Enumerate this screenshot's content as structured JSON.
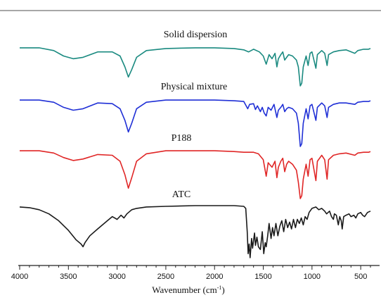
{
  "chart_data": {
    "type": "line",
    "xlabel": "Wavenumber (cm",
    "xlabel_sup": "-1",
    "xlabel_end": ")",
    "x_reversed": true,
    "xlim": [
      4000,
      400
    ],
    "x_ticks": [
      4000,
      3500,
      3000,
      2500,
      2000,
      1500,
      1000,
      500
    ],
    "x_tick_labels": [
      "4000",
      "3500",
      "3000",
      "2500",
      "2000",
      "1500",
      "1000",
      "500"
    ],
    "y_axis_shown": false,
    "grid": false,
    "legend": "none",
    "series": [
      {
        "name": "Solid dispersion",
        "color": "#1a8a80",
        "baseline": 100,
        "points": [
          [
            4000,
            98
          ],
          [
            3800,
            98
          ],
          [
            3650,
            94
          ],
          [
            3550,
            86
          ],
          [
            3450,
            82
          ],
          [
            3350,
            84
          ],
          [
            3200,
            92
          ],
          [
            3050,
            92
          ],
          [
            2970,
            86
          ],
          [
            2920,
            70
          ],
          [
            2885,
            55
          ],
          [
            2850,
            66
          ],
          [
            2800,
            84
          ],
          [
            2700,
            94
          ],
          [
            2500,
            97
          ],
          [
            2200,
            98
          ],
          [
            2000,
            98
          ],
          [
            1800,
            97
          ],
          [
            1700,
            95
          ],
          [
            1650,
            92
          ],
          [
            1600,
            96
          ],
          [
            1540,
            92
          ],
          [
            1500,
            86
          ],
          [
            1470,
            74
          ],
          [
            1440,
            88
          ],
          [
            1410,
            82
          ],
          [
            1380,
            90
          ],
          [
            1360,
            70
          ],
          [
            1345,
            82
          ],
          [
            1320,
            88
          ],
          [
            1300,
            92
          ],
          [
            1280,
            80
          ],
          [
            1260,
            84
          ],
          [
            1240,
            88
          ],
          [
            1200,
            86
          ],
          [
            1160,
            80
          ],
          [
            1140,
            70
          ],
          [
            1120,
            42
          ],
          [
            1105,
            46
          ],
          [
            1090,
            70
          ],
          [
            1060,
            86
          ],
          [
            1040,
            72
          ],
          [
            1020,
            90
          ],
          [
            1000,
            92
          ],
          [
            960,
            68
          ],
          [
            945,
            88
          ],
          [
            900,
            94
          ],
          [
            870,
            90
          ],
          [
            845,
            72
          ],
          [
            830,
            88
          ],
          [
            780,
            92
          ],
          [
            720,
            94
          ],
          [
            650,
            95
          ],
          [
            560,
            90
          ],
          [
            530,
            94
          ],
          [
            470,
            96
          ],
          [
            420,
            96
          ],
          [
            400,
            97
          ]
        ]
      },
      {
        "name": "Physical mixture",
        "color": "#1f2fd6",
        "baseline": 100,
        "points": [
          [
            4000,
            98
          ],
          [
            3800,
            98
          ],
          [
            3650,
            95
          ],
          [
            3550,
            88
          ],
          [
            3450,
            84
          ],
          [
            3350,
            86
          ],
          [
            3200,
            94
          ],
          [
            3050,
            93
          ],
          [
            2970,
            86
          ],
          [
            2920,
            70
          ],
          [
            2885,
            54
          ],
          [
            2850,
            66
          ],
          [
            2800,
            86
          ],
          [
            2700,
            95
          ],
          [
            2500,
            98
          ],
          [
            2200,
            98
          ],
          [
            2000,
            98
          ],
          [
            1800,
            97
          ],
          [
            1700,
            96
          ],
          [
            1660,
            86
          ],
          [
            1640,
            92
          ],
          [
            1600,
            93
          ],
          [
            1580,
            85
          ],
          [
            1560,
            90
          ],
          [
            1530,
            82
          ],
          [
            1510,
            88
          ],
          [
            1490,
            80
          ],
          [
            1470,
            76
          ],
          [
            1450,
            88
          ],
          [
            1420,
            84
          ],
          [
            1390,
            92
          ],
          [
            1360,
            74
          ],
          [
            1345,
            84
          ],
          [
            1320,
            88
          ],
          [
            1300,
            92
          ],
          [
            1280,
            82
          ],
          [
            1260,
            86
          ],
          [
            1240,
            88
          ],
          [
            1200,
            86
          ],
          [
            1160,
            80
          ],
          [
            1140,
            66
          ],
          [
            1120,
            34
          ],
          [
            1105,
            38
          ],
          [
            1090,
            66
          ],
          [
            1060,
            86
          ],
          [
            1040,
            72
          ],
          [
            1020,
            90
          ],
          [
            1000,
            92
          ],
          [
            960,
            70
          ],
          [
            945,
            88
          ],
          [
            900,
            94
          ],
          [
            870,
            90
          ],
          [
            845,
            74
          ],
          [
            830,
            88
          ],
          [
            780,
            92
          ],
          [
            720,
            94
          ],
          [
            650,
            94
          ],
          [
            560,
            92
          ],
          [
            530,
            95
          ],
          [
            470,
            96
          ],
          [
            420,
            96
          ],
          [
            400,
            97
          ]
        ]
      },
      {
        "name": "P188",
        "color": "#e02626",
        "baseline": 100,
        "points": [
          [
            4000,
            98
          ],
          [
            3800,
            98
          ],
          [
            3650,
            95
          ],
          [
            3550,
            89
          ],
          [
            3450,
            85
          ],
          [
            3350,
            87
          ],
          [
            3200,
            93
          ],
          [
            3050,
            92
          ],
          [
            2970,
            84
          ],
          [
            2920,
            66
          ],
          [
            2885,
            48
          ],
          [
            2850,
            62
          ],
          [
            2800,
            84
          ],
          [
            2700,
            94
          ],
          [
            2500,
            98
          ],
          [
            2200,
            98
          ],
          [
            2000,
            98
          ],
          [
            1800,
            97
          ],
          [
            1700,
            96
          ],
          [
            1600,
            96
          ],
          [
            1550,
            94
          ],
          [
            1500,
            86
          ],
          [
            1470,
            64
          ],
          [
            1450,
            82
          ],
          [
            1410,
            76
          ],
          [
            1380,
            84
          ],
          [
            1360,
            62
          ],
          [
            1345,
            76
          ],
          [
            1320,
            84
          ],
          [
            1300,
            88
          ],
          [
            1280,
            70
          ],
          [
            1260,
            80
          ],
          [
            1240,
            84
          ],
          [
            1200,
            80
          ],
          [
            1160,
            72
          ],
          [
            1140,
            56
          ],
          [
            1120,
            34
          ],
          [
            1105,
            38
          ],
          [
            1090,
            60
          ],
          [
            1060,
            80
          ],
          [
            1040,
            64
          ],
          [
            1020,
            86
          ],
          [
            1000,
            88
          ],
          [
            960,
            58
          ],
          [
            945,
            84
          ],
          [
            900,
            92
          ],
          [
            870,
            86
          ],
          [
            845,
            60
          ],
          [
            830,
            86
          ],
          [
            780,
            92
          ],
          [
            720,
            94
          ],
          [
            650,
            95
          ],
          [
            560,
            92
          ],
          [
            530,
            95
          ],
          [
            470,
            96
          ],
          [
            420,
            96
          ],
          [
            400,
            97
          ]
        ]
      },
      {
        "name": "ATC",
        "color": "#1a1a1a",
        "baseline": 100,
        "points": [
          [
            4000,
            98
          ],
          [
            3900,
            97
          ],
          [
            3800,
            94
          ],
          [
            3700,
            88
          ],
          [
            3600,
            78
          ],
          [
            3500,
            64
          ],
          [
            3420,
            50
          ],
          [
            3370,
            44
          ],
          [
            3350,
            40
          ],
          [
            3330,
            46
          ],
          [
            3280,
            56
          ],
          [
            3200,
            66
          ],
          [
            3100,
            78
          ],
          [
            3050,
            84
          ],
          [
            3000,
            80
          ],
          [
            2960,
            86
          ],
          [
            2930,
            82
          ],
          [
            2900,
            88
          ],
          [
            2850,
            94
          ],
          [
            2800,
            96
          ],
          [
            2700,
            98
          ],
          [
            2500,
            99
          ],
          [
            2200,
            100
          ],
          [
            2000,
            100
          ],
          [
            1800,
            100
          ],
          [
            1700,
            99
          ],
          [
            1680,
            96
          ],
          [
            1665,
            62
          ],
          [
            1655,
            30
          ],
          [
            1645,
            44
          ],
          [
            1635,
            24
          ],
          [
            1620,
            52
          ],
          [
            1610,
            38
          ],
          [
            1590,
            60
          ],
          [
            1580,
            42
          ],
          [
            1565,
            54
          ],
          [
            1550,
            40
          ],
          [
            1530,
            36
          ],
          [
            1510,
            62
          ],
          [
            1495,
            30
          ],
          [
            1480,
            46
          ],
          [
            1470,
            40
          ],
          [
            1455,
            56
          ],
          [
            1440,
            74
          ],
          [
            1420,
            52
          ],
          [
            1405,
            68
          ],
          [
            1390,
            56
          ],
          [
            1370,
            74
          ],
          [
            1350,
            56
          ],
          [
            1330,
            70
          ],
          [
            1310,
            78
          ],
          [
            1290,
            62
          ],
          [
            1270,
            80
          ],
          [
            1250,
            68
          ],
          [
            1230,
            76
          ],
          [
            1210,
            66
          ],
          [
            1190,
            80
          ],
          [
            1170,
            68
          ],
          [
            1150,
            80
          ],
          [
            1130,
            74
          ],
          [
            1110,
            82
          ],
          [
            1090,
            72
          ],
          [
            1070,
            84
          ],
          [
            1050,
            80
          ],
          [
            1030,
            90
          ],
          [
            1000,
            96
          ],
          [
            960,
            98
          ],
          [
            930,
            94
          ],
          [
            900,
            96
          ],
          [
            870,
            92
          ],
          [
            850,
            88
          ],
          [
            820,
            92
          ],
          [
            800,
            84
          ],
          [
            780,
            80
          ],
          [
            770,
            88
          ],
          [
            750,
            86
          ],
          [
            730,
            72
          ],
          [
            715,
            84
          ],
          [
            700,
            78
          ],
          [
            690,
            66
          ],
          [
            675,
            84
          ],
          [
            650,
            86
          ],
          [
            620,
            88
          ],
          [
            600,
            84
          ],
          [
            570,
            86
          ],
          [
            550,
            82
          ],
          [
            530,
            88
          ],
          [
            500,
            90
          ],
          [
            480,
            86
          ],
          [
            460,
            84
          ],
          [
            430,
            90
          ],
          [
            400,
            92
          ]
        ]
      }
    ]
  }
}
